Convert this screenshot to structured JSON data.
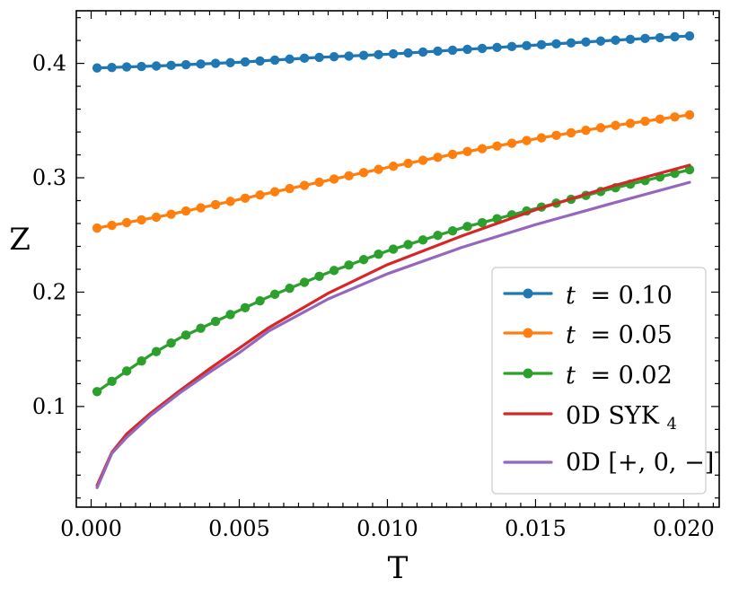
{
  "chart_data": {
    "type": "line",
    "title": "",
    "xlabel": "T",
    "ylabel": "Z",
    "xlim": [
      -0.0005,
      0.0212
    ],
    "ylim": [
      0.012,
      0.446
    ],
    "xticks": [
      0.0,
      0.005,
      0.01,
      0.015,
      0.02
    ],
    "xtick_labels": [
      "0.000",
      "0.005",
      "0.010",
      "0.015",
      "0.020"
    ],
    "yticks": [
      0.1,
      0.2,
      0.3,
      0.4
    ],
    "ytick_labels": [
      "0.1",
      "0.2",
      "0.3",
      "0.4"
    ],
    "legend_position": "lower-right",
    "series": [
      {
        "name": "t = 0.10",
        "legend_var": "t",
        "legend_value": "= 0.10",
        "color": "#1f77b4",
        "markers": true,
        "x": [
          0.0002,
          0.0025,
          0.005,
          0.0075,
          0.01,
          0.0125,
          0.015,
          0.0175,
          0.0202
        ],
        "y": [
          0.396,
          0.398,
          0.401,
          0.405,
          0.408,
          0.412,
          0.416,
          0.42,
          0.424
        ]
      },
      {
        "name": "t = 0.05",
        "legend_var": "t",
        "legend_value": "= 0.05",
        "color": "#ff7f0e",
        "markers": true,
        "x": [
          0.0002,
          0.0025,
          0.005,
          0.0075,
          0.01,
          0.0125,
          0.015,
          0.0175,
          0.0202
        ],
        "y": [
          0.256,
          0.267,
          0.281,
          0.295,
          0.309,
          0.322,
          0.334,
          0.345,
          0.355
        ]
      },
      {
        "name": "t = 0.02",
        "legend_var": "t",
        "legend_value": "= 0.02",
        "color": "#2ca02c",
        "markers": true,
        "x": [
          0.0002,
          0.0007,
          0.0012,
          0.002,
          0.003,
          0.004,
          0.005,
          0.006,
          0.008,
          0.01,
          0.0125,
          0.015,
          0.0175,
          0.0202
        ],
        "y": [
          0.113,
          0.122,
          0.131,
          0.145,
          0.16,
          0.172,
          0.184,
          0.196,
          0.217,
          0.236,
          0.256,
          0.273,
          0.29,
          0.307
        ]
      },
      {
        "name": "0D SYK4",
        "legend_main": "0D SYK",
        "legend_sub": "4",
        "color": "#d62728",
        "markers": false,
        "x": [
          0.0002,
          0.0007,
          0.0012,
          0.002,
          0.003,
          0.004,
          0.005,
          0.006,
          0.008,
          0.01,
          0.0125,
          0.015,
          0.0175,
          0.0202
        ],
        "y": [
          0.031,
          0.06,
          0.076,
          0.094,
          0.114,
          0.133,
          0.151,
          0.169,
          0.199,
          0.224,
          0.249,
          0.272,
          0.292,
          0.311
        ]
      },
      {
        "name": "0D [+, 0, −]",
        "legend_main": "0D [+, 0, −]",
        "color": "#9467bd",
        "markers": false,
        "x": [
          0.0002,
          0.0007,
          0.0012,
          0.002,
          0.003,
          0.004,
          0.005,
          0.006,
          0.008,
          0.01,
          0.0125,
          0.015,
          0.0175,
          0.0202
        ],
        "y": [
          0.029,
          0.059,
          0.073,
          0.092,
          0.112,
          0.13,
          0.147,
          0.166,
          0.194,
          0.216,
          0.239,
          0.259,
          0.277,
          0.296
        ]
      }
    ]
  }
}
